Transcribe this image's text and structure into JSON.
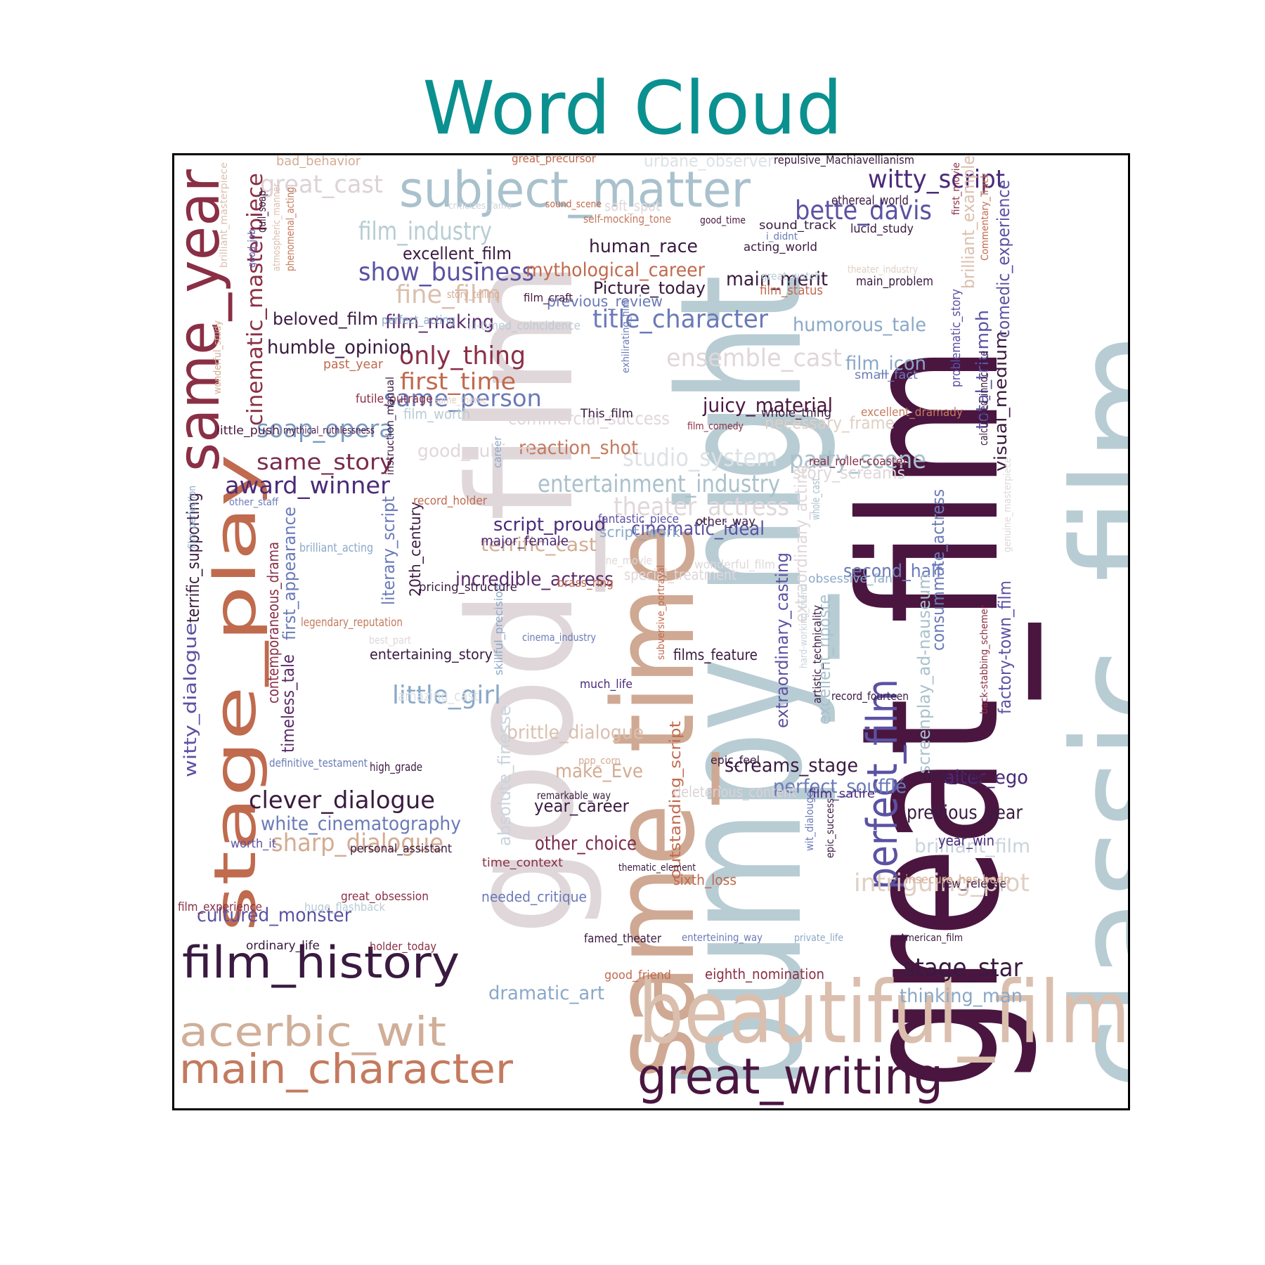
{
  "chart_data": {
    "type": "wordcloud",
    "title": "Word Cloud",
    "colors": {
      "title": "#0b9090",
      "frame": "#000000",
      "dark_purple": "#4a1640",
      "light_blue_gray": "#b8ccd4",
      "tan": "#cfa993",
      "light_gray": "#e0d7da",
      "indigo": "#5b52a3",
      "maroon": "#8a2f45",
      "rust": "#c06a4e"
    },
    "words": [
      {
        "text": "great_film",
        "color": "#4a1640"
      },
      {
        "text": "bumpy_night",
        "color": "#b8ccd4"
      },
      {
        "text": "classic_film",
        "color": "#b8ccd4"
      },
      {
        "text": "good_film",
        "color": "#e0d7da"
      },
      {
        "text": "same_time",
        "color": "#cfa993"
      },
      {
        "text": "beautiful_film",
        "color": "#dbbfae"
      },
      {
        "text": "young_girl",
        "color": "#e0d7da"
      },
      {
        "text": "subject_matter",
        "color": "#a9c1cc"
      },
      {
        "text": "same_year",
        "color": "#8a2f45"
      },
      {
        "text": "stage_play",
        "color": "#c06a4e"
      },
      {
        "text": "inner_circle",
        "color": "#d4ab92"
      },
      {
        "text": "perfect_film",
        "color": "#5b52a3"
      },
      {
        "text": "great_writing",
        "color": "#4a1640"
      },
      {
        "text": "film_history",
        "color": "#3a1a40"
      },
      {
        "text": "main_character",
        "color": "#c47a5e"
      },
      {
        "text": "acerbic_wit",
        "color": "#d0ae98"
      },
      {
        "text": "cinematic_masterpiece",
        "color": "#8a2f45"
      },
      {
        "text": "witty_script",
        "color": "#4a2a7a"
      },
      {
        "text": "bette_davis",
        "color": "#5b52a3"
      },
      {
        "text": "great_cast",
        "color": "#ddd2d6"
      },
      {
        "text": "film_industry",
        "color": "#b8ccd4"
      },
      {
        "text": "show_business",
        "color": "#5b52a3"
      },
      {
        "text": "excellent_film",
        "color": "#3a1a40"
      },
      {
        "text": "mythological_career",
        "color": "#c06a4e"
      },
      {
        "text": "human_race",
        "color": "#3a1a40"
      },
      {
        "text": "fine_film",
        "color": "#dbbfae"
      },
      {
        "text": "film_making",
        "color": "#5a2a6a"
      },
      {
        "text": "only_thing",
        "color": "#8a2f45"
      },
      {
        "text": "first_time",
        "color": "#c06a4e"
      },
      {
        "text": "same_person",
        "color": "#6a7ab8"
      },
      {
        "text": "soap_opera",
        "color": "#7a9ac0"
      },
      {
        "text": "same_story",
        "color": "#7a2a4a"
      },
      {
        "text": "award_winner",
        "color": "#4a2a7a"
      },
      {
        "text": "humble_opinion",
        "color": "#3a1a40"
      },
      {
        "text": "beloved_film",
        "color": "#3a1a40"
      },
      {
        "text": "title_character",
        "color": "#6a7ab8"
      },
      {
        "text": "ensemble_cast",
        "color": "#e0d7da"
      },
      {
        "text": "juicy_material",
        "color": "#4a1640"
      },
      {
        "text": "humorous_tale",
        "color": "#8aa8c8"
      },
      {
        "text": "film_icon",
        "color": "#8aa8c8"
      },
      {
        "text": "main_merit",
        "color": "#3a1a40"
      },
      {
        "text": "Picture_today",
        "color": "#3a1a40"
      },
      {
        "text": "previous_review",
        "color": "#6a7ab8"
      },
      {
        "text": "commercial_success",
        "color": "#e0d7da"
      },
      {
        "text": "studio_system",
        "color": "#dde2e6"
      },
      {
        "text": "party_scene",
        "color": "#a9c1cc"
      },
      {
        "text": "entertainment_industry",
        "color": "#a9c1cc"
      },
      {
        "text": "theater_actress",
        "color": "#e0d7da"
      },
      {
        "text": "cinematic_ideal",
        "color": "#5b52a3"
      },
      {
        "text": "script_proud",
        "color": "#4a2a7a"
      },
      {
        "text": "terrific_cast",
        "color": "#d4ab92"
      },
      {
        "text": "incredible_actress",
        "color": "#5a2a6a"
      },
      {
        "text": "reaction_shot",
        "color": "#c47a5e"
      },
      {
        "text": "good_subject",
        "color": "#e0d7da"
      },
      {
        "text": "stage_star",
        "color": "#3a1a40"
      },
      {
        "text": "little_girl",
        "color": "#8aa8c8"
      },
      {
        "text": "clever_dialogue",
        "color": "#3a1a40"
      },
      {
        "text": "sharp_dialogue",
        "color": "#d4ab92"
      },
      {
        "text": "white_cinematography",
        "color": "#6a7ab8"
      },
      {
        "text": "cultured_monster",
        "color": "#5b52a3"
      },
      {
        "text": "intriguing_plot",
        "color": "#e0cfc4"
      },
      {
        "text": "brilliant_film",
        "color": "#c8d4dc"
      },
      {
        "text": "previous_year",
        "color": "#3a1a40"
      },
      {
        "text": "alter_ego",
        "color": "#4a2a7a"
      },
      {
        "text": "perfect_soufflé",
        "color": "#6a7ab8"
      },
      {
        "text": "screams_stage",
        "color": "#3a1a40"
      },
      {
        "text": "make_Eve",
        "color": "#d4ab92"
      },
      {
        "text": "year_career",
        "color": "#3a1a40"
      },
      {
        "text": "other_choice",
        "color": "#7a2a4a"
      },
      {
        "text": "thinking_man",
        "color": "#8aa8c8"
      },
      {
        "text": "dramatic_art",
        "color": "#8aa8c8"
      },
      {
        "text": "second_half",
        "color": "#6a7ab8"
      },
      {
        "text": "brittle_dialogue",
        "color": "#dbbfae"
      },
      {
        "text": "visual_medium",
        "color": "#3a1a40"
      },
      {
        "text": "comedic_experience",
        "color": "#5b52a3"
      },
      {
        "text": "total_triumph",
        "color": "#5b52a3"
      },
      {
        "text": "brilliant_example",
        "color": "#dbbfae"
      },
      {
        "text": "extraordinary_casting",
        "color": "#5b52a3"
      },
      {
        "text": "extraordinary_acting",
        "color": "#e0d7da"
      },
      {
        "text": "excellent_riposte",
        "color": "#a9c1cc"
      },
      {
        "text": "consummate_actress",
        "color": "#6a7ab8"
      },
      {
        "text": "screenplay_ad-nauseum",
        "color": "#a9c1cc"
      },
      {
        "text": "factory-town_film",
        "color": "#5b52a3"
      },
      {
        "text": "outstanding_script",
        "color": "#c06a4e"
      },
      {
        "text": "absolute_finesse",
        "color": "#c8d4dc"
      },
      {
        "text": "literary_script",
        "color": "#6a7ab8"
      },
      {
        "text": "20th_century",
        "color": "#3a1a40"
      },
      {
        "text": "witty_dialogue",
        "color": "#5b52a3"
      },
      {
        "text": "timeless_tale",
        "color": "#5a2a6a"
      },
      {
        "text": "first_appearance",
        "color": "#6a7ab8"
      },
      {
        "text": "contemporaneous_drama",
        "color": "#8a2f45"
      },
      {
        "text": "terrific_supporting",
        "color": "#3a1a40"
      },
      {
        "text": "special_treatment",
        "color": "#e0d7da"
      },
      {
        "text": "deleterious_content",
        "color": "#ddd2d6"
      },
      {
        "text": "necessary_frame",
        "color": "#e0cfc4"
      },
      {
        "text": "story_screams",
        "color": "#e0d7da"
      },
      {
        "text": "bad_behavior",
        "color": "#d4ab92"
      },
      {
        "text": "great_precursor",
        "color": "#c06a4e"
      },
      {
        "text": "urbane_observer",
        "color": "#dde2e6"
      },
      {
        "text": "repulsive_Machiavellianism",
        "color": "#3a1a40"
      },
      {
        "text": "ethereal_world",
        "color": "#3a1a40"
      },
      {
        "text": "sound_track",
        "color": "#3a1a40"
      },
      {
        "text": "lucid_study",
        "color": "#3a1a40"
      },
      {
        "text": "acting_world",
        "color": "#3a1a40"
      },
      {
        "text": "main_problem",
        "color": "#3a1a40"
      },
      {
        "text": "film_status",
        "color": "#c06a4e"
      },
      {
        "text": "small_fact",
        "color": "#6a7ab8"
      },
      {
        "text": "whole_thing",
        "color": "#3a1a40"
      },
      {
        "text": "excellent_dramady",
        "color": "#c47a5e"
      },
      {
        "text": "This_film",
        "color": "#3a1a40"
      },
      {
        "text": "real_roller-coaster",
        "color": "#8a2f45"
      },
      {
        "text": "other_way",
        "color": "#3a1a40"
      },
      {
        "text": "script_work",
        "color": "#8aa8c8"
      },
      {
        "text": "major_female",
        "color": "#4a2a7a"
      },
      {
        "text": "pricing_structure",
        "color": "#3a1a40"
      },
      {
        "text": "entertaining_story",
        "color": "#3a1a40"
      },
      {
        "text": "films_feature",
        "color": "#3a1a40"
      },
      {
        "text": "epic_feel",
        "color": "#3a1a40"
      },
      {
        "text": "film_satire",
        "color": "#4a2a7a"
      },
      {
        "text": "first_film",
        "color": "#3a1a40"
      },
      {
        "text": "year_win",
        "color": "#4a2a7a"
      },
      {
        "text": "new_release",
        "color": "#3a1a40"
      },
      {
        "text": "sixth_loss",
        "color": "#c06a4e"
      },
      {
        "text": "needed_critique",
        "color": "#6a7ab8"
      },
      {
        "text": "time_context",
        "color": "#8a2f45"
      },
      {
        "text": "personal_assistant",
        "color": "#3a1a40"
      },
      {
        "text": "great_obsession",
        "color": "#8a2f45"
      },
      {
        "text": "film_experience",
        "color": "#8a2f45"
      },
      {
        "text": "huge_flashback",
        "color": "#b8ccd4"
      },
      {
        "text": "worth_it",
        "color": "#5b52a3"
      },
      {
        "text": "ordinary_life",
        "color": "#3a1a40"
      },
      {
        "text": "holder_today",
        "color": "#8a2f45"
      },
      {
        "text": "famed_theater",
        "color": "#3a1a40"
      },
      {
        "text": "good_friend",
        "color": "#c06a4e"
      },
      {
        "text": "eighth_nomination",
        "color": "#8a2f45"
      },
      {
        "text": "enterteining_way",
        "color": "#6a7ab8"
      },
      {
        "text": "private_life",
        "color": "#8aa8c8"
      },
      {
        "text": "American_film",
        "color": "#3a1a40"
      },
      {
        "text": "insecure_has-been",
        "color": "#d4ab92"
      },
      {
        "text": "remarkable_way",
        "color": "#3a1a40"
      },
      {
        "text": "pop_corn",
        "color": "#d4ab92"
      },
      {
        "text": "much_life",
        "color": "#4a2a7a"
      },
      {
        "text": "cinema_industry",
        "color": "#6a7ab8"
      },
      {
        "text": "brass_ring",
        "color": "#c06a4e"
      },
      {
        "text": "obsessive_fan",
        "color": "#8aa8c8"
      },
      {
        "text": "wonderful_film",
        "color": "#e0d7da"
      },
      {
        "text": "fine_movie",
        "color": "#e0d7da"
      },
      {
        "text": "fantastic_piece",
        "color": "#5b52a3"
      },
      {
        "text": "record_holder",
        "color": "#c06a4e"
      },
      {
        "text": "legendary_reputation",
        "color": "#c47a5e"
      },
      {
        "text": "best_part",
        "color": "#e0d7da"
      },
      {
        "text": "amazing_cast",
        "color": "#dde2e6"
      },
      {
        "text": "high_grade",
        "color": "#3a1a40"
      },
      {
        "text": "definitive_testament",
        "color": "#6a7ab8"
      },
      {
        "text": "brilliant_acting",
        "color": "#8aa8c8"
      },
      {
        "text": "other_staff",
        "color": "#6a7ab8"
      },
      {
        "text": "little_push",
        "color": "#4a1640"
      },
      {
        "text": "mythical_ruthlessness",
        "color": "#4a1640"
      },
      {
        "text": "futile_outrage",
        "color": "#8a2f45"
      },
      {
        "text": "same_theme",
        "color": "#e0cfc4"
      },
      {
        "text": "film_worth",
        "color": "#b8ccd4"
      },
      {
        "text": "past_year",
        "color": "#c06a4e"
      },
      {
        "text": "perfect_acting",
        "color": "#8aa8c8"
      },
      {
        "text": "ill-timed_coincidence",
        "color": "#b8ccd4"
      },
      {
        "text": "story_telling",
        "color": "#d4ab92"
      },
      {
        "text": "film_craft",
        "color": "#4a1640"
      },
      {
        "text": "self-mocking_tone",
        "color": "#c47a5e"
      },
      {
        "text": "soft_spot",
        "color": "#e0d7da"
      },
      {
        "text": "sound_scene",
        "color": "#c06a4e"
      },
      {
        "text": "criticizes_fame",
        "color": "#c8d4dc"
      },
      {
        "text": "good_time",
        "color": "#4a1640"
      },
      {
        "text": "i_didnt",
        "color": "#6a7ab8"
      },
      {
        "text": "great_watch",
        "color": "#b8ccd4"
      },
      {
        "text": "theater_industry",
        "color": "#e0cfc4"
      },
      {
        "text": "film_comedy",
        "color": "#8a2f45"
      },
      {
        "text": "brilliant_masterpiece",
        "color": "#dbbfae"
      },
      {
        "text": "dull_soap",
        "color": "#3a1a40"
      },
      {
        "text": "good_job",
        "color": "#5b52a3"
      },
      {
        "text": "atmospheric_manner",
        "color": "#dbbfae"
      },
      {
        "text": "phenomenal_acting",
        "color": "#c47a5e"
      },
      {
        "text": "wonderful_study",
        "color": "#d4ab92"
      },
      {
        "text": "instruction_manual",
        "color": "#3a1a40"
      },
      {
        "text": "career",
        "color": "#8aa8c8"
      },
      {
        "text": "exhilirating_film",
        "color": "#6a7ab8"
      },
      {
        "text": "film_perfection",
        "color": "#8aa8c8"
      },
      {
        "text": "skillful_precision",
        "color": "#8aa8c8"
      },
      {
        "text": "subversive_portrayal",
        "color": "#c06a4e"
      },
      {
        "text": "thematic_element",
        "color": "#3a1a40"
      },
      {
        "text": "hard-working_friend",
        "color": "#c8d4dc"
      },
      {
        "text": "artistic_technicality",
        "color": "#3a1a40"
      },
      {
        "text": "record_fourteen",
        "color": "#3a1a40"
      },
      {
        "text": "wit_dialouge",
        "color": "#6a7ab8"
      },
      {
        "text": "epic_success",
        "color": "#3a1a40"
      },
      {
        "text": "whole_cast",
        "color": "#a9c1cc"
      },
      {
        "text": "problematic_story",
        "color": "#5b52a3"
      },
      {
        "text": "calculated_innocence",
        "color": "#3a1a40"
      },
      {
        "text": "first_movie",
        "color": "#8a2f45"
      },
      {
        "text": "Commentary_Track",
        "color": "#c06a4e"
      },
      {
        "text": "genuine_masterpiece",
        "color": "#e0d7da"
      },
      {
        "text": "back-stabbing_schemer",
        "color": "#8a2f45"
      }
    ]
  }
}
